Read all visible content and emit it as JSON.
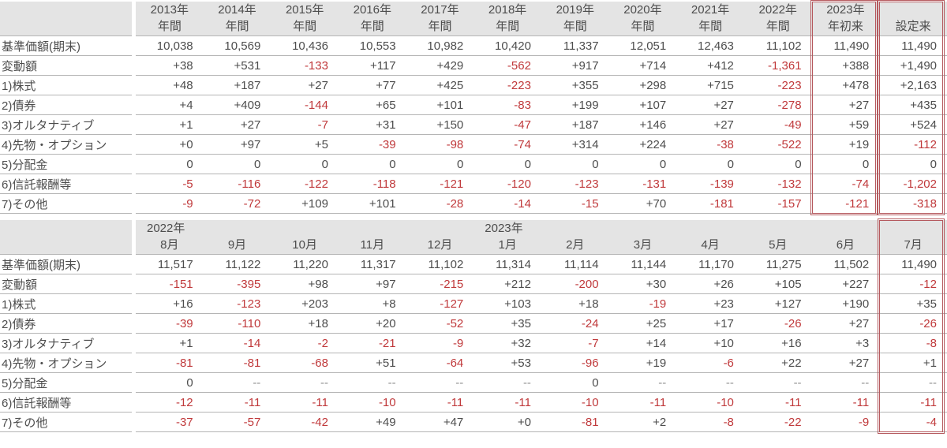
{
  "colors": {
    "text": "#4d4d4d",
    "negative_text": "#c0393b",
    "dash_text": "#8f8f8f",
    "header_background": "#e4e4e4",
    "grid_line": "#b5b5b5",
    "highlight_border": "#b5595e"
  },
  "annual_table": {
    "year_align": "center",
    "columns": [
      {
        "year": "2013年",
        "period": "年間"
      },
      {
        "year": "2014年",
        "period": "年間"
      },
      {
        "year": "2015年",
        "period": "年間"
      },
      {
        "year": "2016年",
        "period": "年間"
      },
      {
        "year": "2017年",
        "period": "年間"
      },
      {
        "year": "2018年",
        "period": "年間"
      },
      {
        "year": "2019年",
        "period": "年間"
      },
      {
        "year": "2020年",
        "period": "年間"
      },
      {
        "year": "2021年",
        "period": "年間"
      },
      {
        "year": "2022年",
        "period": "年間"
      },
      {
        "year": "2023年",
        "period": "年初来"
      },
      {
        "year": "",
        "period": "設定来"
      }
    ],
    "highlight_columns": [
      10,
      11
    ],
    "rows": [
      {
        "label": "基準価額(期末)",
        "values": [
          "10,038",
          "10,569",
          "10,436",
          "10,553",
          "10,982",
          "10,420",
          "11,337",
          "12,051",
          "12,463",
          "11,102",
          "11,490",
          "11,490"
        ]
      },
      {
        "label": "変動額",
        "values": [
          "+38",
          "+531",
          "-133",
          "+117",
          "+429",
          "-562",
          "+917",
          "+714",
          "+412",
          "-1,361",
          "+388",
          "+1,490"
        ]
      },
      {
        "label": "1)株式",
        "values": [
          "+48",
          "+187",
          "+27",
          "+77",
          "+425",
          "-223",
          "+355",
          "+298",
          "+715",
          "-223",
          "+478",
          "+2,163"
        ]
      },
      {
        "label": "2)債券",
        "values": [
          "+4",
          "+409",
          "-144",
          "+65",
          "+101",
          "-83",
          "+199",
          "+107",
          "+27",
          "-278",
          "+27",
          "+435"
        ]
      },
      {
        "label": "3)オルタナティブ",
        "values": [
          "+1",
          "+27",
          "-7",
          "+31",
          "+150",
          "-47",
          "+187",
          "+146",
          "+27",
          "-49",
          "+59",
          "+524"
        ]
      },
      {
        "label": "4)先物・オプション",
        "values": [
          "+0",
          "+97",
          "+5",
          "-39",
          "-98",
          "-74",
          "+314",
          "+224",
          "-38",
          "-522",
          "+19",
          "-112"
        ]
      },
      {
        "label": "5)分配金",
        "values": [
          "0",
          "0",
          "0",
          "0",
          "0",
          "0",
          "0",
          "0",
          "0",
          "0",
          "0",
          "0"
        ]
      },
      {
        "label": "6)信託報酬等",
        "values": [
          "-5",
          "-116",
          "-122",
          "-118",
          "-121",
          "-120",
          "-123",
          "-131",
          "-139",
          "-132",
          "-74",
          "-1,202"
        ]
      },
      {
        "label": "7)その他",
        "values": [
          "-9",
          "-72",
          "+109",
          "+101",
          "-28",
          "-14",
          "-15",
          "+70",
          "-181",
          "-157",
          "-121",
          "-318"
        ]
      }
    ]
  },
  "monthly_table": {
    "year_align": "left",
    "columns": [
      {
        "year": "2022年",
        "period": "8月"
      },
      {
        "year": "",
        "period": "9月"
      },
      {
        "year": "",
        "period": "10月"
      },
      {
        "year": "",
        "period": "11月"
      },
      {
        "year": "",
        "period": "12月"
      },
      {
        "year": "2023年",
        "period": "1月"
      },
      {
        "year": "",
        "period": "2月"
      },
      {
        "year": "",
        "period": "3月"
      },
      {
        "year": "",
        "period": "4月"
      },
      {
        "year": "",
        "period": "5月"
      },
      {
        "year": "",
        "period": "6月"
      },
      {
        "year": "",
        "period": "7月"
      }
    ],
    "highlight_columns": [
      11
    ],
    "rows": [
      {
        "label": "基準価額(期末)",
        "values": [
          "11,517",
          "11,122",
          "11,220",
          "11,317",
          "11,102",
          "11,314",
          "11,114",
          "11,144",
          "11,170",
          "11,275",
          "11,502",
          "11,490"
        ]
      },
      {
        "label": "変動額",
        "values": [
          "-151",
          "-395",
          "+98",
          "+97",
          "-215",
          "+212",
          "-200",
          "+30",
          "+26",
          "+105",
          "+227",
          "-12"
        ]
      },
      {
        "label": "1)株式",
        "values": [
          "+16",
          "-123",
          "+203",
          "+8",
          "-127",
          "+103",
          "+18",
          "-19",
          "+23",
          "+127",
          "+190",
          "+35"
        ]
      },
      {
        "label": "2)債券",
        "values": [
          "-39",
          "-110",
          "+18",
          "+20",
          "-52",
          "+35",
          "-24",
          "+25",
          "+17",
          "-26",
          "+27",
          "-26"
        ]
      },
      {
        "label": "3)オルタナティブ",
        "values": [
          "+1",
          "-14",
          "-2",
          "-21",
          "-9",
          "+32",
          "-7",
          "+14",
          "+10",
          "+16",
          "+3",
          "-8"
        ]
      },
      {
        "label": "4)先物・オプション",
        "values": [
          "-81",
          "-81",
          "-68",
          "+51",
          "-64",
          "+53",
          "-96",
          "+19",
          "-6",
          "+22",
          "+27",
          "+1"
        ]
      },
      {
        "label": "5)分配金",
        "values": [
          "0",
          "--",
          "--",
          "--",
          "--",
          "--",
          "0",
          "--",
          "--",
          "--",
          "--",
          "--"
        ]
      },
      {
        "label": "6)信託報酬等",
        "values": [
          "-12",
          "-11",
          "-11",
          "-10",
          "-11",
          "-11",
          "-10",
          "-11",
          "-10",
          "-11",
          "-11",
          "-11"
        ]
      },
      {
        "label": "7)その他",
        "values": [
          "-37",
          "-57",
          "-42",
          "+49",
          "+47",
          "+0",
          "-81",
          "+2",
          "-8",
          "-22",
          "-9",
          "-4"
        ]
      }
    ]
  }
}
